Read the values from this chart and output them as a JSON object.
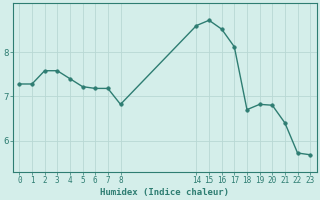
{
  "x": [
    0,
    1,
    2,
    3,
    4,
    5,
    6,
    7,
    8,
    14,
    15,
    16,
    17,
    18,
    19,
    20,
    21,
    22,
    23
  ],
  "y": [
    7.28,
    7.28,
    7.58,
    7.58,
    7.4,
    7.22,
    7.18,
    7.18,
    6.82,
    8.6,
    8.72,
    8.52,
    8.12,
    6.7,
    6.82,
    6.8,
    6.4,
    5.72,
    5.68
  ],
  "line_color": "#2e7d72",
  "marker_color": "#2e7d72",
  "bg_color": "#d4eeea",
  "grid_color": "#b8d8d4",
  "axis_color": "#2e7d72",
  "xlabel": "Humidex (Indice chaleur)",
  "xticks": [
    0,
    1,
    2,
    3,
    4,
    5,
    6,
    7,
    8,
    14,
    15,
    16,
    17,
    18,
    19,
    20,
    21,
    22,
    23
  ],
  "yticks": [
    6,
    7,
    8
  ],
  "xlim": [
    -0.5,
    23.5
  ],
  "ylim": [
    5.3,
    9.1
  ],
  "font_color": "#2e7d72",
  "linewidth": 1.0,
  "markersize": 2.5
}
